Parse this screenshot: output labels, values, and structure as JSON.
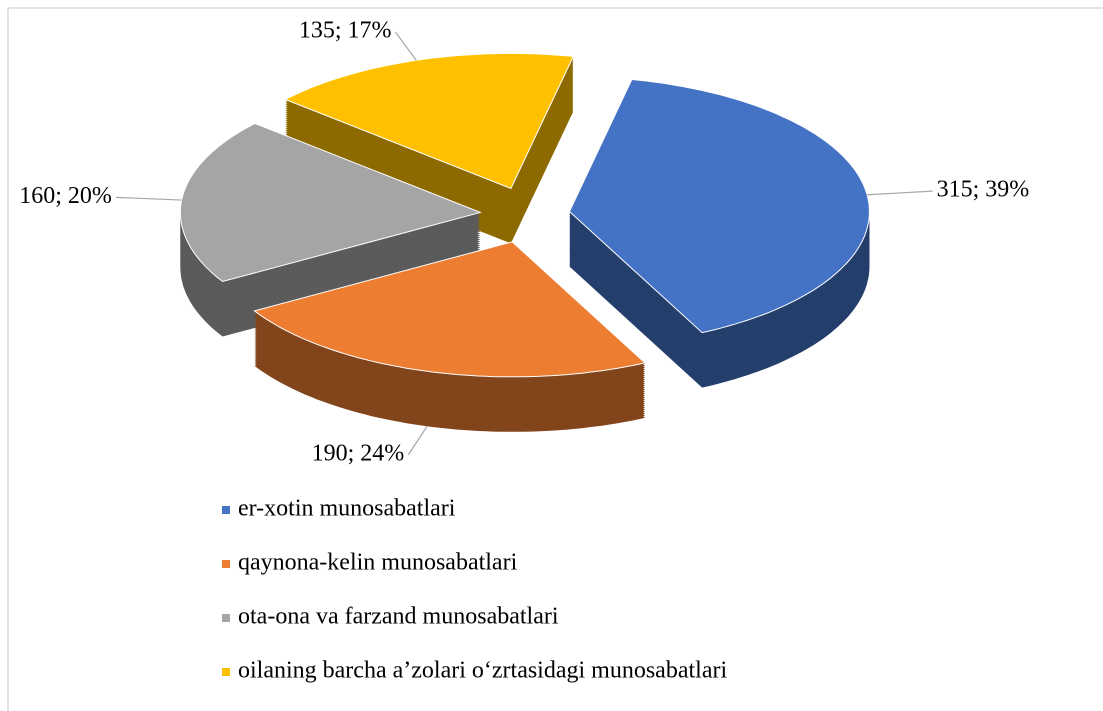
{
  "chart_data": {
    "type": "pie",
    "categories": [
      "er-xotin munosabatlari",
      "qaynona-kelin munosabatlari",
      "ota-ona va farzand munosabatlari",
      "oilaning barcha a’zolari o‘zrtasidagi munosabatlari"
    ],
    "values": [
      315,
      190,
      160,
      135
    ],
    "value_labels": [
      "315; 39%",
      "190; 24%",
      "160; 20%",
      "135; 17%"
    ],
    "colors": [
      "#4472c4",
      "#ed7d31",
      "#a5a5a5",
      "#ffc000"
    ],
    "legend": "bottom"
  }
}
